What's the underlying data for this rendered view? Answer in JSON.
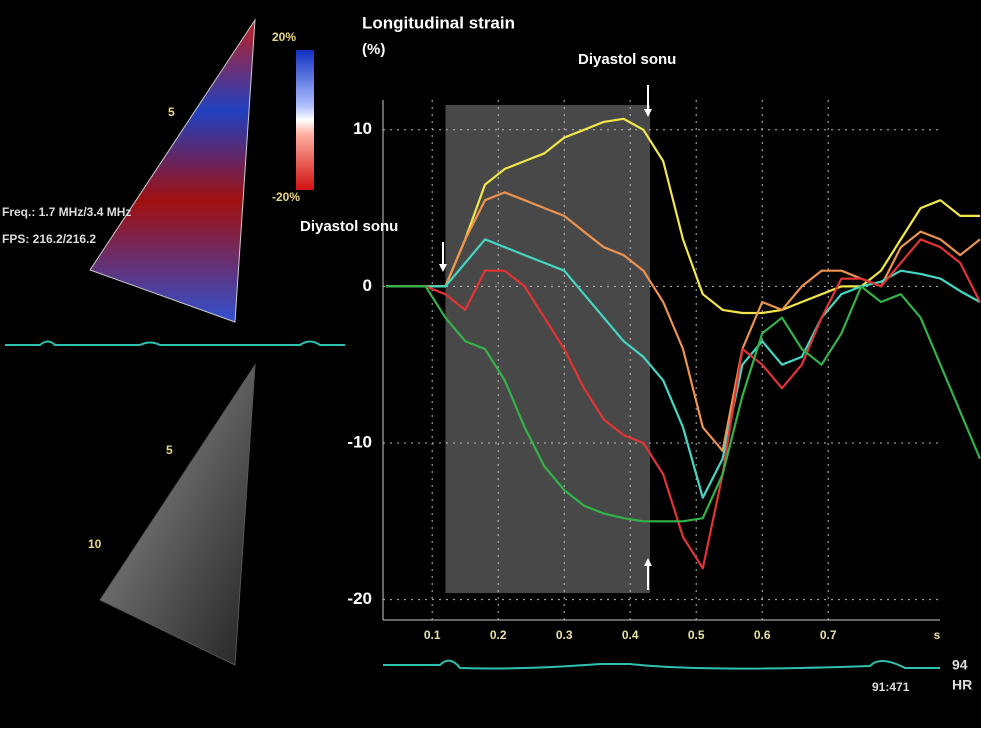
{
  "chart_data": {
    "type": "line",
    "title": "Longitudinal strain",
    "y_label": "(%)",
    "x_label": "s",
    "x": [
      0.03,
      0.06,
      0.09,
      0.12,
      0.15,
      0.18,
      0.21,
      0.24,
      0.27,
      0.3,
      0.33,
      0.36,
      0.39,
      0.42,
      0.45,
      0.48,
      0.51,
      0.54,
      0.57,
      0.6,
      0.63,
      0.66,
      0.69,
      0.72,
      0.75,
      0.78,
      0.81,
      0.84,
      0.87,
      0.9,
      0.93
    ],
    "series": [
      {
        "color": "#f2e64a",
        "values": [
          0,
          0,
          0,
          0,
          3,
          6.5,
          7.5,
          8,
          8.5,
          9.5,
          10,
          10.5,
          10.7,
          10,
          8,
          3,
          -0.5,
          -1.5,
          -1.7,
          -1.7,
          -1.5,
          -1,
          -0.5,
          0,
          0,
          1,
          3,
          5,
          5.5,
          4.5,
          4.5
        ]
      },
      {
        "color": "#ec9350",
        "values": [
          0,
          0,
          0,
          0,
          3,
          5.5,
          6,
          5.5,
          5,
          4.5,
          3.5,
          2.5,
          2,
          1,
          -1,
          -4,
          -9,
          -10.5,
          -4,
          -1,
          -1.5,
          0,
          1,
          1,
          0.5,
          0,
          2.5,
          3.5,
          3,
          2,
          3
        ]
      },
      {
        "color": "#45d6c4",
        "values": [
          0,
          0,
          0,
          0,
          1.5,
          3,
          2.5,
          2,
          1.5,
          1,
          -0.5,
          -2,
          -3.5,
          -4.5,
          -6,
          -9,
          -13.5,
          -11,
          -5,
          -3.5,
          -5,
          -4.5,
          -2,
          -0.5,
          0,
          0.3,
          1,
          0.8,
          0.5,
          -0.3,
          -1
        ]
      },
      {
        "color": "#e23434",
        "values": [
          0,
          0,
          0,
          -0.5,
          -1.5,
          1,
          1,
          0,
          -2,
          -4,
          -6.5,
          -8.5,
          -9.5,
          -10,
          -12,
          -16,
          -18,
          -12,
          -4,
          -5,
          -6.5,
          -5,
          -2,
          0.5,
          0.5,
          0,
          1.5,
          3,
          2.5,
          1.5,
          -1
        ]
      },
      {
        "color": "#34b24a",
        "values": [
          0,
          0,
          0,
          -2,
          -3.5,
          -4,
          -6,
          -9,
          -11.5,
          -13,
          -14,
          -14.5,
          -14.8,
          -15,
          -15,
          -15,
          -14.8,
          -12,
          -7,
          -3,
          -2,
          -4,
          -5,
          -3,
          0,
          -1,
          -0.5,
          -2,
          -5,
          -8,
          -11
        ]
      }
    ],
    "xlim": [
      0.03,
      0.93
    ],
    "ylim": [
      -21.3,
      11.9
    ],
    "xticks": [
      0.1,
      0.2,
      0.3,
      0.4,
      0.5,
      0.6,
      0.7
    ],
    "yticks": [
      10,
      0,
      -10,
      -20
    ],
    "grid": true,
    "shaded_region": [
      0.12,
      0.43
    ],
    "annotations": [
      "Diyastol sonu",
      "Diyastol sonu"
    ]
  },
  "left_panel": {
    "freq": "Freq.: 1.7 MHz/3.4 MHz",
    "fps": "FPS: 216.2/216.2",
    "scale_max": "20%",
    "scale_min": "-20%",
    "top_label": "5",
    "bottom_labels": [
      "5",
      "10"
    ]
  },
  "ecg_panel": {
    "time": "91:471",
    "hr": "94",
    "hr_label": "HR"
  }
}
